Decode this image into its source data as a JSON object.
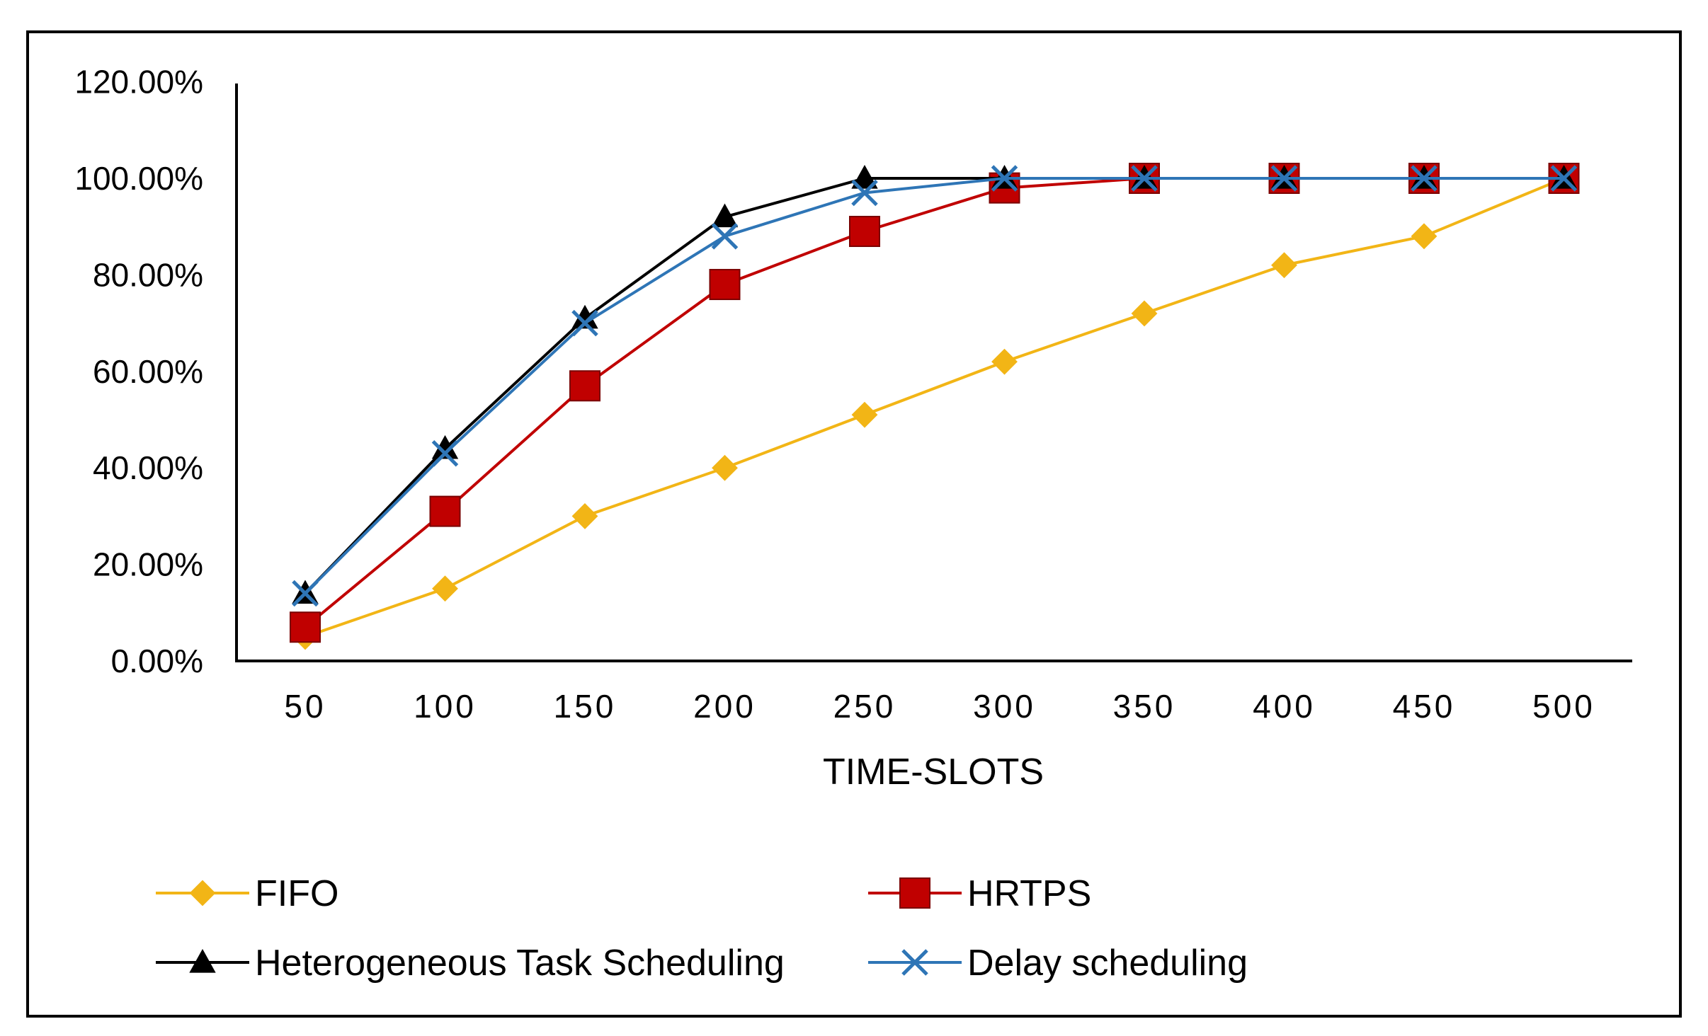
{
  "chart_data": {
    "type": "line",
    "title": "",
    "xlabel": "TIME-SLOTS",
    "ylabel": "",
    "categories": [
      "50",
      "100",
      "150",
      "200",
      "250",
      "300",
      "350",
      "400",
      "450",
      "500"
    ],
    "ylim": [
      0,
      120
    ],
    "yticks": [
      {
        "value": 0,
        "label": "0.00%"
      },
      {
        "value": 20,
        "label": "20.00%"
      },
      {
        "value": 40,
        "label": "40.00%"
      },
      {
        "value": 60,
        "label": "60.00%"
      },
      {
        "value": 80,
        "label": "80.00%"
      },
      {
        "value": 100,
        "label": "100.00%"
      },
      {
        "value": 120,
        "label": "120.00%"
      }
    ],
    "grid": false,
    "legend_position": "bottom",
    "series": [
      {
        "name": "FIFO",
        "color": "#F2B516",
        "marker": "diamond",
        "values": [
          5,
          15,
          30,
          40,
          51,
          62,
          72,
          82,
          88,
          100
        ]
      },
      {
        "name": "HRTPS",
        "color": "#C00000",
        "marker": "square",
        "values": [
          7,
          31,
          57,
          78,
          89,
          98,
          100,
          100,
          100,
          100
        ]
      },
      {
        "name": "Heterogeneous Task Scheduling",
        "color": "#000000",
        "marker": "triangle",
        "values": [
          14,
          44,
          71,
          92,
          100,
          100,
          100,
          100,
          100,
          100
        ]
      },
      {
        "name": "Delay scheduling",
        "color": "#2E75B6",
        "marker": "x",
        "values": [
          14,
          43,
          70,
          88,
          97,
          100,
          100,
          100,
          100,
          100
        ]
      }
    ]
  }
}
